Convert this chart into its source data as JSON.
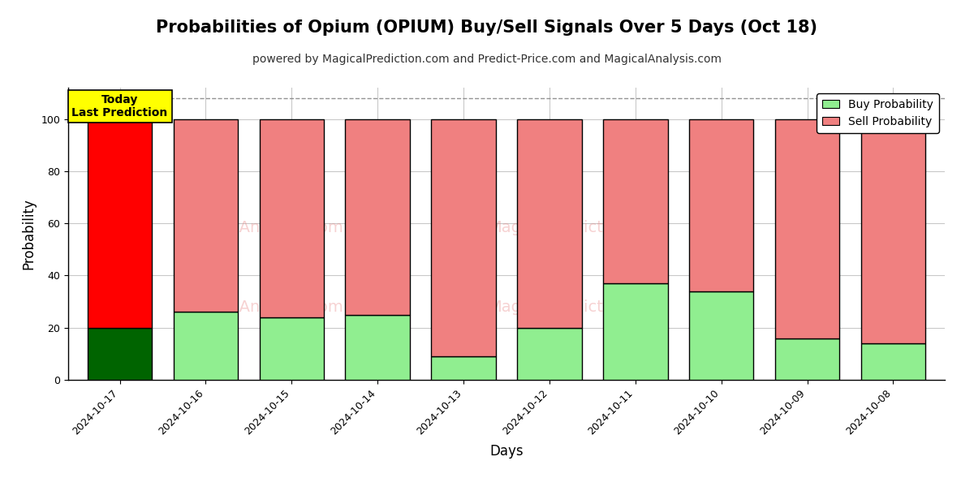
{
  "title": "Probabilities of Opium (OPIUM) Buy/Sell Signals Over 5 Days (Oct 18)",
  "subtitle": "powered by MagicalPrediction.com and Predict-Price.com and MagicalAnalysis.com",
  "xlabel": "Days",
  "ylabel": "Probability",
  "categories": [
    "2024-10-17",
    "2024-10-16",
    "2024-10-15",
    "2024-10-14",
    "2024-10-13",
    "2024-10-12",
    "2024-10-11",
    "2024-10-10",
    "2024-10-09",
    "2024-10-08"
  ],
  "buy_values": [
    20,
    26,
    24,
    25,
    9,
    20,
    37,
    34,
    16,
    14
  ],
  "sell_values": [
    80,
    74,
    76,
    75,
    91,
    80,
    63,
    66,
    84,
    86
  ],
  "buy_colors": [
    "#006400",
    "#90EE90",
    "#90EE90",
    "#90EE90",
    "#90EE90",
    "#90EE90",
    "#90EE90",
    "#90EE90",
    "#90EE90",
    "#90EE90"
  ],
  "sell_colors": [
    "#FF0000",
    "#F08080",
    "#F08080",
    "#F08080",
    "#F08080",
    "#F08080",
    "#F08080",
    "#F08080",
    "#F08080",
    "#F08080"
  ],
  "today_label": "Today\nLast Prediction",
  "today_bg": "#FFFF00",
  "legend_buy_label": "Buy Probability",
  "legend_sell_label": "Sell Probability",
  "ylim": [
    0,
    112
  ],
  "yticks": [
    0,
    20,
    40,
    60,
    80,
    100
  ],
  "dashed_line_y": 108,
  "bar_edge_color": "#000000",
  "bar_linewidth": 1.0,
  "title_fontsize": 15,
  "subtitle_fontsize": 10,
  "label_fontsize": 12,
  "tick_fontsize": 9,
  "legend_fontsize": 10,
  "today_fontsize": 10,
  "bg_color": "#FFFFFF",
  "grid_color": "#BBBBBB",
  "grid_alpha": 0.8,
  "bar_width": 0.75
}
